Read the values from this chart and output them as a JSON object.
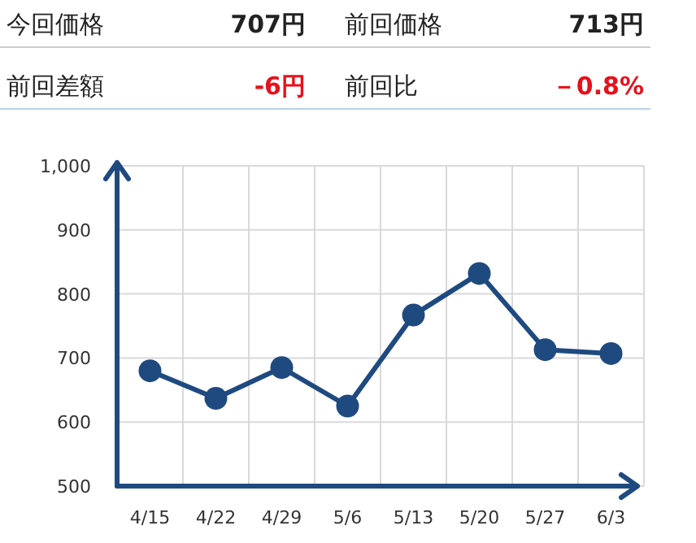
{
  "chart_data": [
    {
      "type": "other",
      "annotations": [
        "今回価格",
        "707円",
        "前回価格",
        "713円",
        "前回差額",
        "-6円",
        "前回比",
        "－0.8%"
      ]
    },
    {
      "type": "line",
      "categories": [
        "4/15",
        "4/22",
        "4/29",
        "5/6",
        "5/13",
        "5/20",
        "5/27",
        "6/3"
      ],
      "series": [
        {
          "color": "#1f4a80",
          "values": [
            680,
            637,
            685,
            625,
            767,
            832,
            713,
            707
          ]
        }
      ],
      "ylim": [
        500,
        1000
      ],
      "yticks": [
        500,
        600,
        700,
        800,
        900,
        {
          "value": 1000,
          "label": "1,000"
        }
      ],
      "grid": true,
      "marker": "circle",
      "line_style": "solid"
    }
  ]
}
